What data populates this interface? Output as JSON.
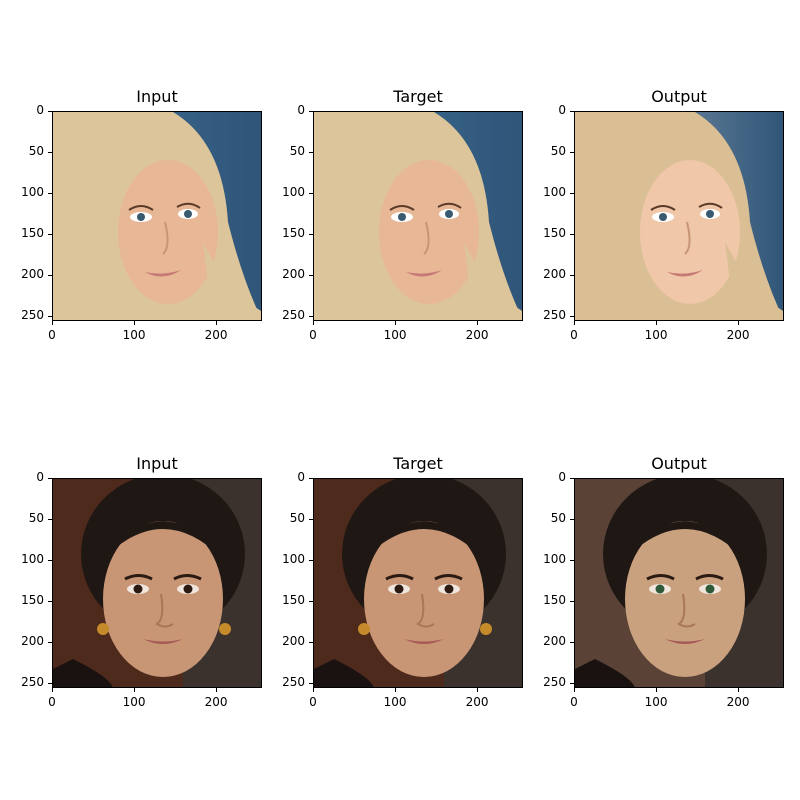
{
  "figure": {
    "rows": [
      {
        "panels": [
          {
            "title": "Input",
            "image": "blonde-woman-face-photo",
            "variant": "real"
          },
          {
            "title": "Target",
            "image": "blonde-woman-face-photo",
            "variant": "real"
          },
          {
            "title": "Output",
            "image": "blonde-woman-face-photo",
            "variant": "generated"
          }
        ]
      },
      {
        "panels": [
          {
            "title": "Input",
            "image": "dark-haired-woman-face-photo",
            "variant": "real"
          },
          {
            "title": "Target",
            "image": "dark-haired-woman-face-photo",
            "variant": "real"
          },
          {
            "title": "Output",
            "image": "dark-haired-woman-face-photo",
            "variant": "generated"
          }
        ]
      }
    ],
    "y_ticks": [
      "0",
      "50",
      "100",
      "150",
      "200",
      "250"
    ],
    "x_ticks": [
      "0",
      "100",
      "200"
    ]
  }
}
